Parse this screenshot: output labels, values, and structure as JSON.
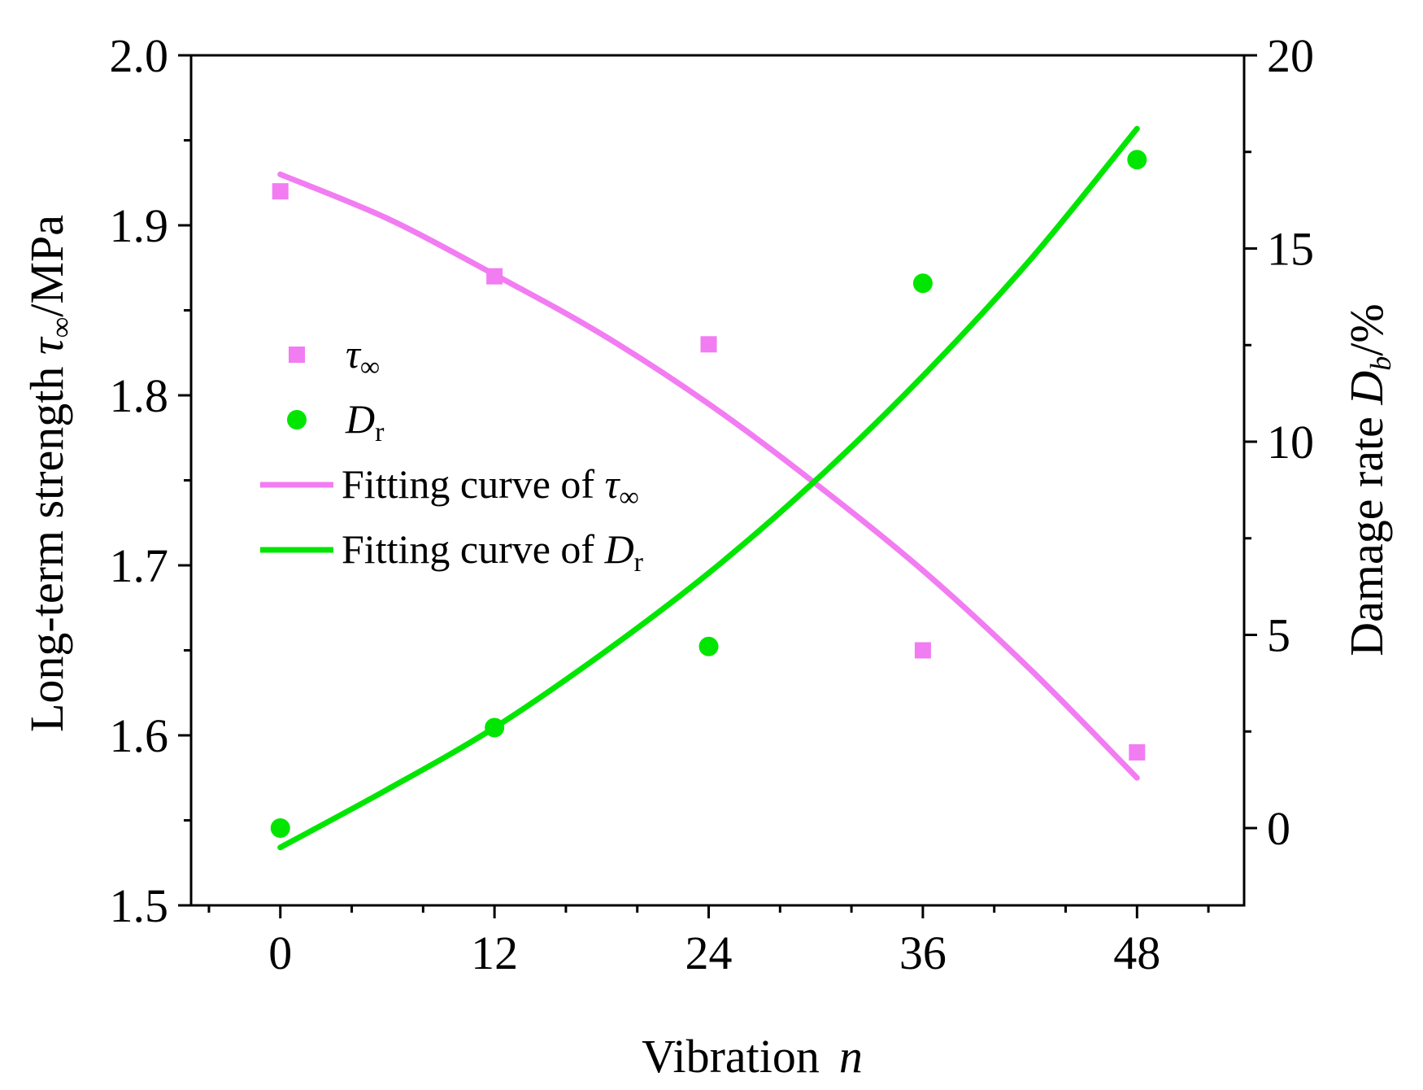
{
  "chart_data": {
    "type": "scatter",
    "x_axis": {
      "label": "Vibration",
      "label_italic_symbol": "n",
      "range": [
        -5,
        54
      ],
      "ticks": [
        0,
        12,
        24,
        36,
        48
      ],
      "tick_labels": [
        "0",
        "12",
        "24",
        "36",
        "48"
      ]
    },
    "y_left": {
      "label": "Long-term strength",
      "symbol": "τ",
      "symbol_sub": "∞",
      "unit": "/MPa",
      "range": [
        1.5,
        2.0
      ],
      "ticks": [
        1.5,
        1.6,
        1.7,
        1.8,
        1.9,
        2.0
      ],
      "tick_labels": [
        "1.5",
        "1.6",
        "1.7",
        "1.8",
        "1.9",
        "2.0"
      ]
    },
    "y_right": {
      "label": "Damage rate",
      "symbol": "D",
      "symbol_sub": "b",
      "unit": "/%",
      "range": [
        -2,
        20
      ],
      "ticks": [
        0,
        5,
        10,
        15,
        20
      ],
      "tick_labels": [
        "0",
        "5",
        "10",
        "15",
        "20"
      ]
    },
    "series": [
      {
        "name": "τ∞",
        "kind": "scatter",
        "marker": "square",
        "axis": "left",
        "color": "#f27cf2",
        "x": [
          0,
          12,
          24,
          36,
          48
        ],
        "y": [
          1.92,
          1.87,
          1.83,
          1.65,
          1.59
        ]
      },
      {
        "name": "Dr",
        "kind": "scatter",
        "marker": "circle",
        "axis": "right",
        "color": "#00e600",
        "x": [
          0,
          12,
          24,
          36,
          48
        ],
        "y": [
          0.0,
          2.6,
          4.7,
          14.1,
          17.3
        ]
      },
      {
        "name": "Fitting curve of τ∞",
        "kind": "line",
        "axis": "left",
        "color": "#f27cf2",
        "x": [
          0,
          6,
          12,
          18,
          24,
          30,
          36,
          42,
          48
        ],
        "y": [
          1.93,
          1.904,
          1.871,
          1.836,
          1.795,
          1.748,
          1.697,
          1.639,
          1.575
        ]
      },
      {
        "name": "Fitting curve of Dr",
        "kind": "line",
        "axis": "right",
        "color": "#00e600",
        "x": [
          0,
          6,
          12,
          18,
          24,
          30,
          36,
          42,
          48
        ],
        "y": [
          -0.5,
          1.0,
          2.6,
          4.5,
          6.6,
          9.0,
          11.7,
          14.7,
          18.1
        ]
      }
    ],
    "legend": {
      "position": "center-left",
      "entries": [
        {
          "marker": "square",
          "color": "#f27cf2",
          "text": "",
          "sym": "τ",
          "sub": "∞"
        },
        {
          "marker": "circle",
          "color": "#00e600",
          "text": "",
          "sym": "D",
          "sub": "r"
        },
        {
          "marker": "line",
          "color": "#f27cf2",
          "text": "Fitting curve of ",
          "sym": "τ",
          "sub": "∞"
        },
        {
          "marker": "line",
          "color": "#00e600",
          "text": "Fitting curve of ",
          "sym": "D",
          "sub": "r"
        }
      ]
    }
  }
}
